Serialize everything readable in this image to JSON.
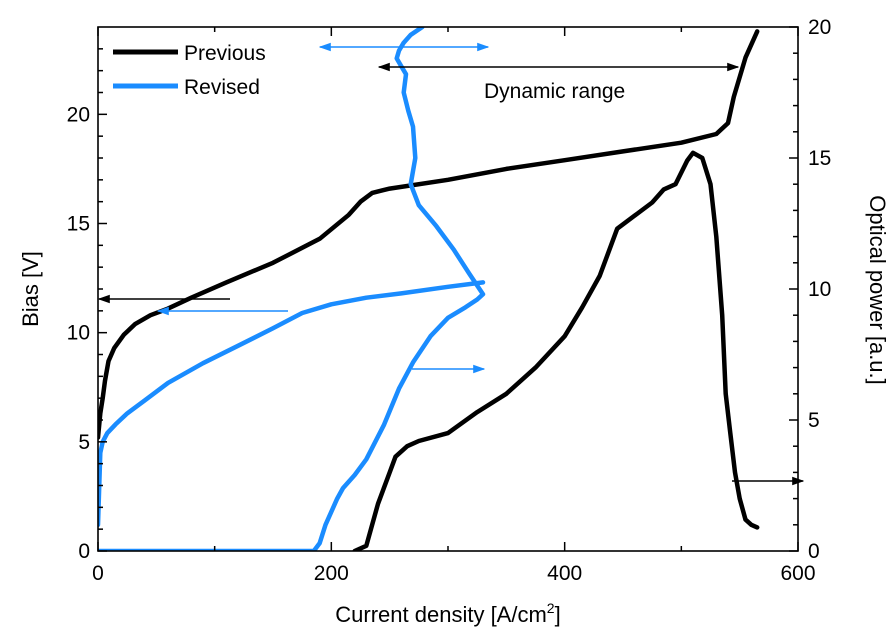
{
  "chart_data": {
    "type": "line",
    "xlabel": "Current density [A/cm²]",
    "xlabel_main": "Current density [A/cm",
    "xlabel_sup": "2",
    "xlabel_tail": "]",
    "ylabel_left": "Bias [V]",
    "ylabel_right": "Optical power [a.u.]",
    "xlim": [
      0,
      600
    ],
    "ylim_left": [
      0,
      24
    ],
    "ylim_right": [
      0,
      20
    ],
    "x_ticks": [
      0,
      200,
      400,
      600
    ],
    "y_left_ticks": [
      0,
      5,
      10,
      15,
      20
    ],
    "y_right_ticks": [
      0,
      5,
      10,
      15,
      20
    ],
    "grid": false,
    "legend_position": "top-left",
    "legend": [
      {
        "name": "Previous",
        "color": "#000000"
      },
      {
        "name": "Revised",
        "color": "#1a8cff"
      }
    ],
    "annotation_text": "Dynamic range",
    "colors": {
      "previous": "#000000",
      "revised": "#1a8cff"
    },
    "series": [
      {
        "name": "Previous",
        "axis": "left",
        "color": "#000000",
        "x": [
          0,
          2,
          4,
          6,
          9,
          14,
          22,
          32,
          45,
          60,
          80,
          110,
          150,
          190,
          215,
          225,
          235,
          250,
          300,
          350,
          400,
          450,
          500,
          530,
          540,
          545,
          555,
          565
        ],
        "y": [
          5.2,
          6.3,
          7.0,
          7.8,
          8.7,
          9.3,
          9.9,
          10.4,
          10.8,
          11.1,
          11.6,
          12.3,
          13.2,
          14.3,
          15.4,
          16.0,
          16.4,
          16.6,
          17.0,
          17.5,
          17.9,
          18.3,
          18.7,
          19.1,
          19.6,
          20.8,
          22.6,
          23.8
        ]
      },
      {
        "name": "Revised",
        "axis": "left",
        "color": "#1a8cff",
        "x": [
          0,
          2,
          4,
          8,
          15,
          25,
          40,
          60,
          90,
          120,
          150,
          175,
          200,
          230,
          260,
          300,
          330
        ],
        "y": [
          1.2,
          4.5,
          5.0,
          5.4,
          5.8,
          6.3,
          6.9,
          7.7,
          8.6,
          9.4,
          10.2,
          10.9,
          11.3,
          11.6,
          11.8,
          12.1,
          12.3
        ]
      },
      {
        "name": "Previous",
        "axis": "right",
        "color": "#000000",
        "x": [
          220,
          230,
          240,
          250,
          255,
          265,
          275,
          300,
          325,
          350,
          375,
          400,
          415,
          430,
          445,
          460,
          475,
          485,
          495,
          505,
          510,
          518,
          525,
          530,
          535,
          538,
          542,
          546,
          550,
          555,
          560,
          565
        ],
        "y": [
          0,
          0.2,
          1.8,
          3.0,
          3.6,
          4.0,
          4.2,
          4.5,
          5.3,
          6.0,
          7.0,
          8.2,
          9.3,
          10.5,
          12.3,
          12.8,
          13.3,
          13.8,
          14.0,
          14.9,
          15.2,
          15.0,
          14.0,
          12.0,
          9.0,
          6.0,
          4.5,
          3.0,
          2.0,
          1.2,
          1.0,
          0.9
        ]
      },
      {
        "name": "Revised",
        "axis": "right",
        "color": "#1a8cff",
        "x": [
          0,
          50,
          100,
          150,
          185,
          190,
          195,
          205,
          210,
          220,
          230,
          245,
          258,
          270,
          285,
          300,
          315,
          325,
          330,
          318,
          305,
          290,
          275,
          268,
          272,
          270,
          266,
          262,
          264,
          260,
          256,
          258,
          262,
          268,
          278
        ],
        "y": [
          0,
          0,
          0,
          0,
          0,
          0.3,
          1.0,
          2.0,
          2.4,
          2.9,
          3.5,
          4.8,
          6.2,
          7.2,
          8.2,
          8.9,
          9.3,
          9.6,
          9.8,
          10.6,
          11.5,
          12.4,
          13.2,
          14.0,
          15.0,
          16.2,
          16.8,
          17.5,
          18.2,
          18.5,
          18.8,
          19.1,
          19.4,
          19.7,
          20.0
        ]
      }
    ]
  }
}
